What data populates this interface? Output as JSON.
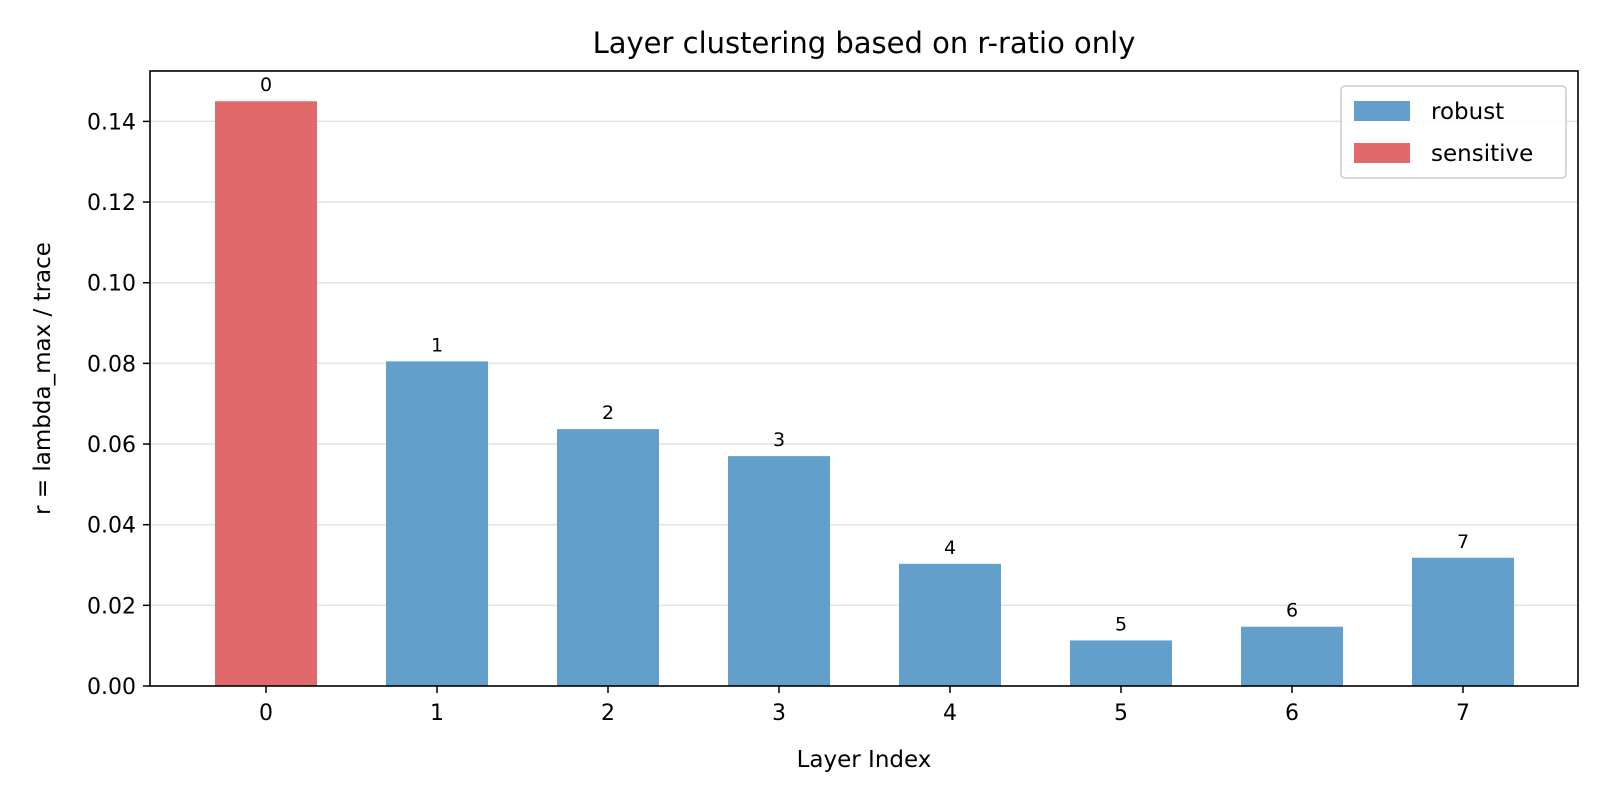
{
  "chart_data": {
    "type": "bar",
    "title": "Layer clustering based on r-ratio only",
    "xlabel": "Layer Index",
    "ylabel": "r = lambda_max / trace",
    "categories": [
      "0",
      "1",
      "2",
      "3",
      "4",
      "5",
      "6",
      "7"
    ],
    "values": [
      0.145,
      0.0805,
      0.0637,
      0.057,
      0.0303,
      0.0113,
      0.0147,
      0.0318
    ],
    "groups": [
      "sensitive",
      "robust",
      "robust",
      "robust",
      "robust",
      "robust",
      "robust",
      "robust"
    ],
    "bar_labels": [
      "0",
      "1",
      "2",
      "3",
      "4",
      "5",
      "6",
      "7"
    ],
    "ylim": [
      0,
      0.1525
    ],
    "yticks": [
      0.0,
      0.02,
      0.04,
      0.06,
      0.08,
      0.1,
      0.12,
      0.14
    ],
    "ytick_labels": [
      "0.00",
      "0.02",
      "0.04",
      "0.06",
      "0.08",
      "0.10",
      "0.12",
      "0.14"
    ],
    "grid": "horizontal",
    "legend": {
      "position": "top-right",
      "entries": [
        {
          "label": "robust",
          "color": "#62a0cb"
        },
        {
          "label": "sensitive",
          "color": "#e2696b"
        }
      ]
    },
    "colors": {
      "robust": "#62a0cb",
      "sensitive": "#e2696b"
    }
  }
}
